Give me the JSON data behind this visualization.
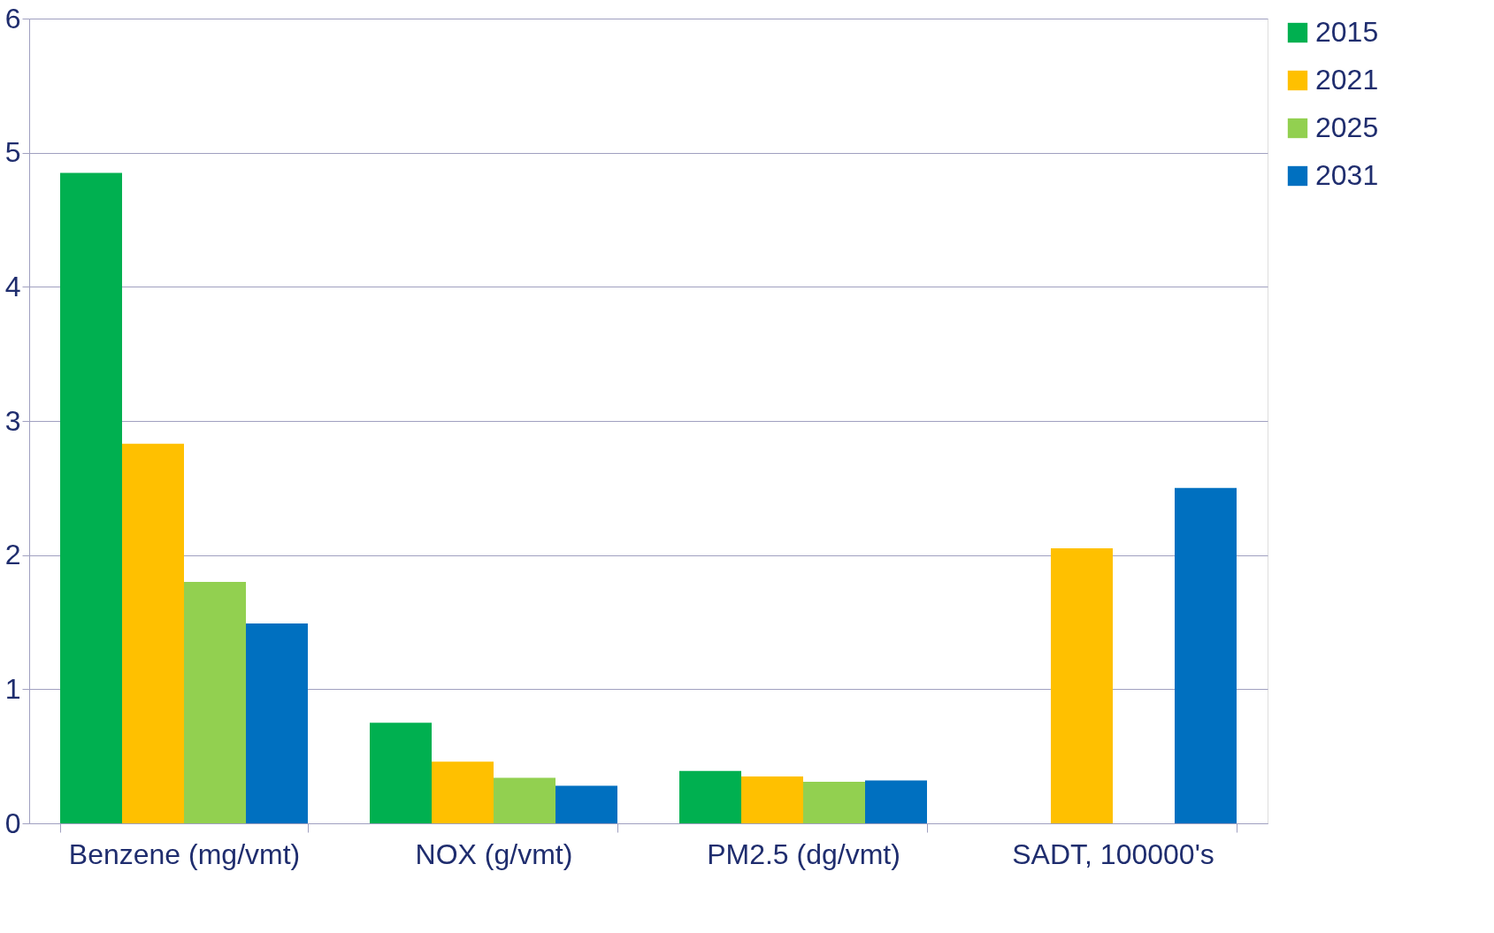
{
  "chart_data": {
    "type": "bar",
    "categories": [
      "Benzene (mg/vmt)",
      "NOX (g/vmt)",
      "PM2.5 (dg/vmt)",
      "SADT, 100000's"
    ],
    "series": [
      {
        "name": "2015",
        "color": "#00b050",
        "values": [
          4.85,
          0.75,
          0.39,
          null
        ]
      },
      {
        "name": "2021",
        "color": "#ffc000",
        "values": [
          2.83,
          0.46,
          0.35,
          2.05
        ]
      },
      {
        "name": "2025",
        "color": "#92d050",
        "values": [
          1.8,
          0.34,
          0.31,
          null
        ]
      },
      {
        "name": "2031",
        "color": "#0070c0",
        "values": [
          1.49,
          0.28,
          0.32,
          2.5
        ]
      }
    ],
    "ylim": [
      0,
      6
    ],
    "yticks": [
      0,
      1,
      2,
      3,
      4,
      5,
      6
    ],
    "grid": "y",
    "legend": "right"
  }
}
